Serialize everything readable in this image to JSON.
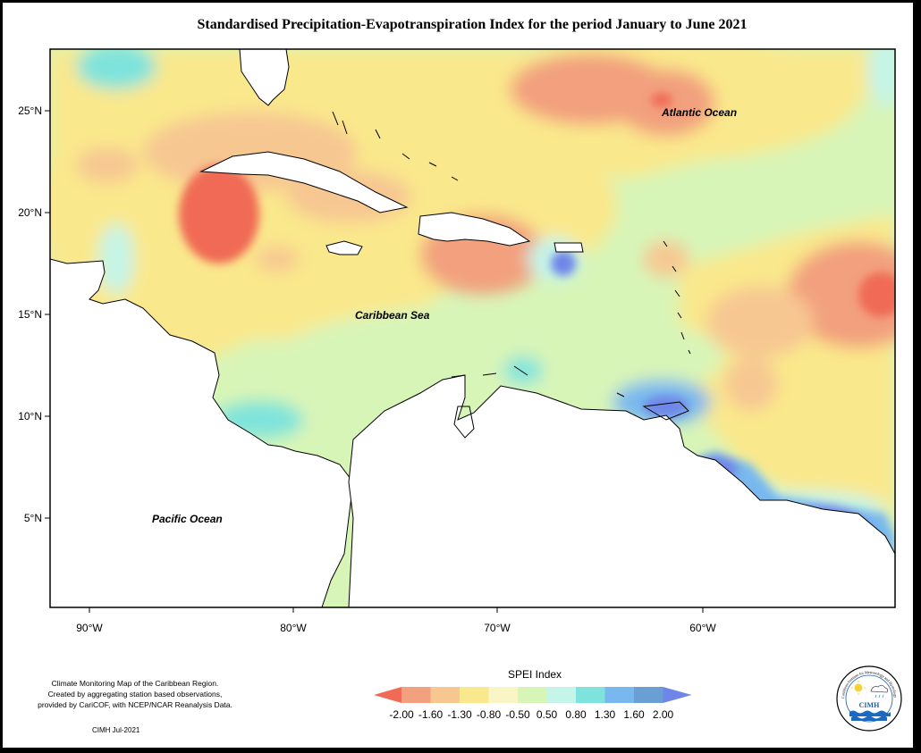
{
  "title": "Standardised Precipitation-Evapotranspiration Index for the period January to June 2021",
  "map": {
    "lat_labels": [
      "25°N",
      "20°N",
      "15°N",
      "10°N",
      "5°N"
    ],
    "lon_labels": [
      "90°W",
      "80°W",
      "70°W",
      "60°W"
    ],
    "ocean_labels": {
      "atlantic": "Atlantic Ocean",
      "caribbean": "Caribbean Sea",
      "pacific": "Pacific Ocean"
    }
  },
  "legend": {
    "title": "SPEI Index",
    "ticks": [
      "-2.00",
      "-1.60",
      "-1.30",
      "-0.80",
      "-0.50",
      "0.50",
      "0.80",
      "1.30",
      "1.60",
      "2.00"
    ],
    "colors": {
      "lt_-2": "#f06a55",
      "-2_-1.6": "#f2a07e",
      "-1.6_-1.3": "#f7c792",
      "-1.3_-0.8": "#fae88c",
      "-0.8_-0.5": "#f9f5c4",
      "-0.5_0.5": "#d8f5b8",
      "0.5_0.8": "#c4f5e8",
      "0.8_1.3": "#7ee3dc",
      "1.3_1.6": "#78b8ee",
      "1.6_2": "#6a9fd4",
      "gt_2": "#6f86e8"
    }
  },
  "footnote": {
    "lines": [
      "Climate Monitoring Map of the Caribbean Region.",
      "Created by aggregating station based observations,",
      "provided by CariCOF, with NCEP/NCAR Reanalysis Data."
    ],
    "credit": "CIMH Jul-2021"
  },
  "logo": {
    "text": "CIMH",
    "ring_text": "Caribbean Institute for Meteorology and Hydrology"
  }
}
